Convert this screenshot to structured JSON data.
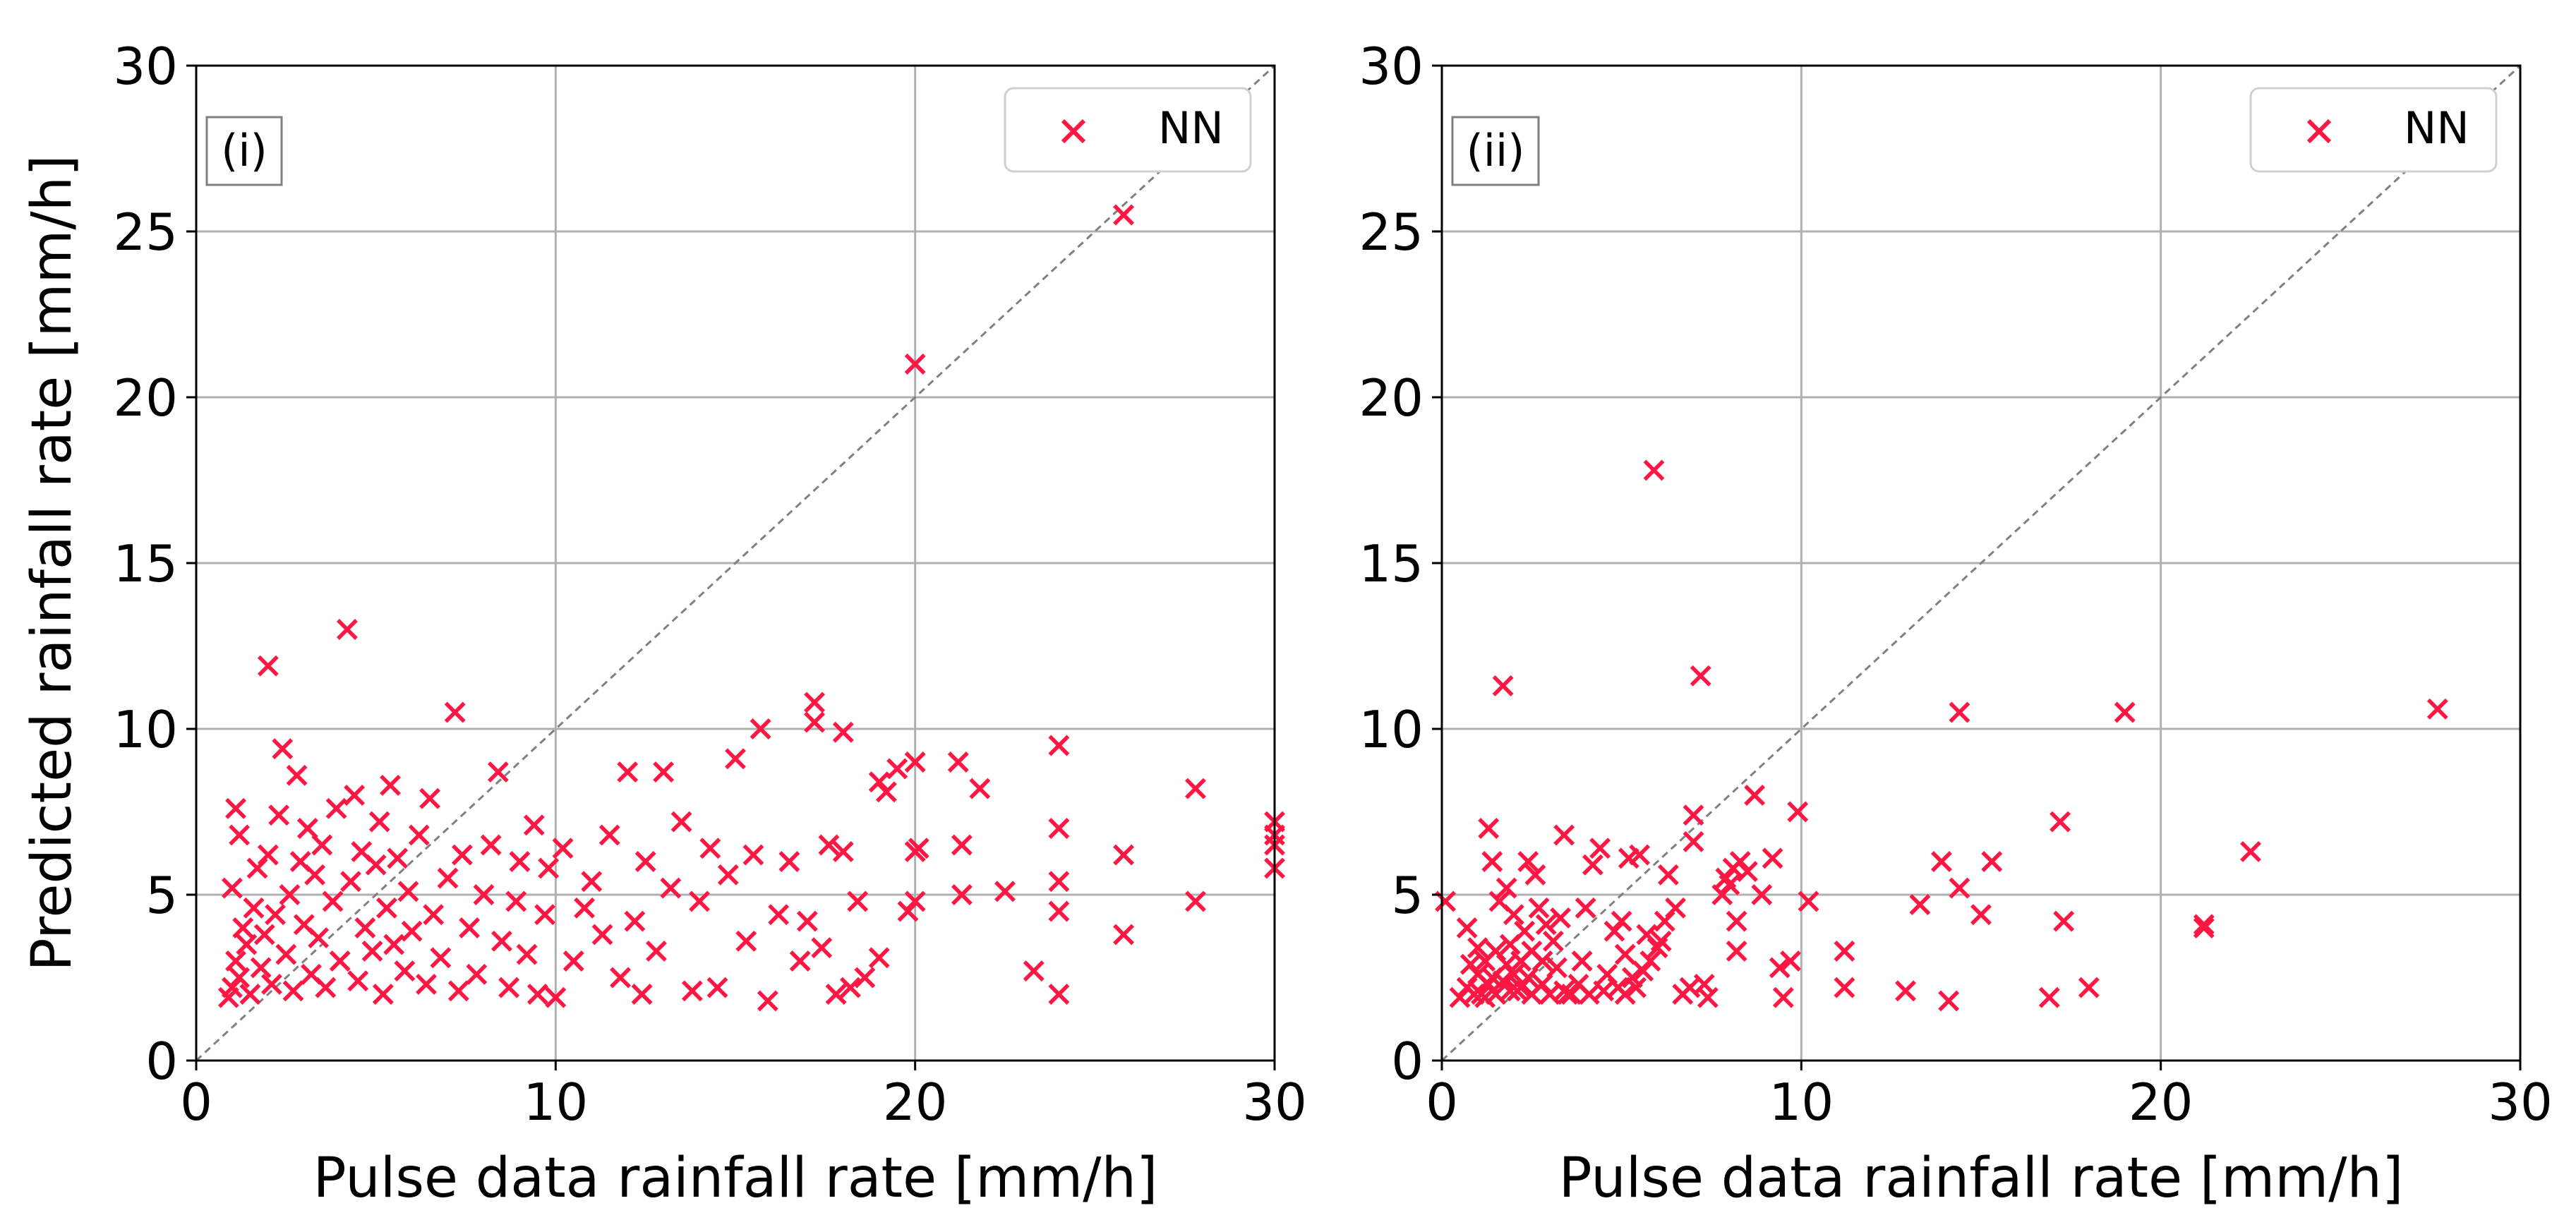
{
  "figure": {
    "marker_color": "#ff1744",
    "grid_color": "#b0b0b0",
    "diagonal_color": "#808080"
  },
  "chart_data": [
    {
      "type": "scatter",
      "panel_label": "(i)",
      "xlabel": "Pulse data rainfall rate [mm/h]",
      "ylabel": "Predicted rainfall rate [mm/h]",
      "xlim": [
        0,
        30
      ],
      "ylim": [
        0,
        30
      ],
      "xticks": [
        0,
        10,
        20,
        30
      ],
      "yticks": [
        0,
        5,
        10,
        15,
        20,
        25,
        30
      ],
      "grid": true,
      "reference_line": "y = x",
      "legend": {
        "position": "top-right",
        "entries": [
          "NN"
        ]
      },
      "marker": "x",
      "series": [
        {
          "name": "NN",
          "points": [
            [
              0.9,
              1.9
            ],
            [
              1.0,
              2.2
            ],
            [
              1.1,
              3.0
            ],
            [
              1.2,
              2.5
            ],
            [
              1.3,
              4.0
            ],
            [
              1.0,
              5.2
            ],
            [
              1.2,
              6.8
            ],
            [
              1.1,
              7.6
            ],
            [
              1.4,
              3.5
            ],
            [
              1.5,
              2.0
            ],
            [
              1.6,
              4.6
            ],
            [
              1.7,
              5.8
            ],
            [
              1.8,
              2.8
            ],
            [
              1.9,
              3.8
            ],
            [
              2.0,
              11.9
            ],
            [
              2.0,
              6.2
            ],
            [
              2.1,
              2.3
            ],
            [
              2.2,
              4.4
            ],
            [
              2.3,
              7.4
            ],
            [
              2.4,
              9.4
            ],
            [
              2.5,
              3.2
            ],
            [
              2.6,
              5.0
            ],
            [
              2.7,
              2.1
            ],
            [
              2.8,
              8.6
            ],
            [
              2.9,
              6.0
            ],
            [
              3.0,
              4.1
            ],
            [
              3.1,
              7.0
            ],
            [
              3.2,
              2.6
            ],
            [
              3.3,
              5.6
            ],
            [
              3.4,
              3.7
            ],
            [
              3.5,
              6.5
            ],
            [
              3.6,
              2.2
            ],
            [
              3.8,
              4.8
            ],
            [
              3.9,
              7.6
            ],
            [
              4.0,
              3.0
            ],
            [
              4.2,
              13.0
            ],
            [
              4.3,
              5.4
            ],
            [
              4.4,
              8.0
            ],
            [
              4.5,
              2.4
            ],
            [
              4.6,
              6.3
            ],
            [
              4.7,
              4.0
            ],
            [
              4.9,
              3.3
            ],
            [
              5.0,
              5.9
            ],
            [
              5.1,
              7.2
            ],
            [
              5.2,
              2.0
            ],
            [
              5.3,
              4.6
            ],
            [
              5.4,
              8.3
            ],
            [
              5.5,
              3.5
            ],
            [
              5.6,
              6.1
            ],
            [
              5.8,
              2.7
            ],
            [
              5.9,
              5.1
            ],
            [
              6.0,
              3.9
            ],
            [
              6.2,
              6.8
            ],
            [
              6.4,
              2.3
            ],
            [
              6.5,
              7.9
            ],
            [
              6.6,
              4.4
            ],
            [
              6.8,
              3.1
            ],
            [
              7.0,
              5.5
            ],
            [
              7.2,
              10.5
            ],
            [
              7.3,
              2.1
            ],
            [
              7.4,
              6.2
            ],
            [
              7.6,
              4.0
            ],
            [
              7.8,
              2.6
            ],
            [
              8.0,
              5.0
            ],
            [
              8.2,
              6.5
            ],
            [
              8.4,
              8.7
            ],
            [
              8.5,
              3.6
            ],
            [
              8.7,
              2.2
            ],
            [
              8.9,
              4.8
            ],
            [
              9.0,
              6.0
            ],
            [
              9.2,
              3.2
            ],
            [
              9.4,
              7.1
            ],
            [
              9.5,
              2.0
            ],
            [
              9.7,
              4.4
            ],
            [
              9.8,
              5.8
            ],
            [
              10.0,
              1.9
            ],
            [
              10.2,
              6.4
            ],
            [
              10.5,
              3.0
            ],
            [
              10.8,
              4.6
            ],
            [
              11.0,
              5.4
            ],
            [
              11.3,
              3.8
            ],
            [
              11.5,
              6.8
            ],
            [
              11.8,
              2.5
            ],
            [
              12.0,
              8.7
            ],
            [
              12.2,
              4.2
            ],
            [
              12.4,
              2.0
            ],
            [
              12.5,
              6.0
            ],
            [
              12.8,
              3.3
            ],
            [
              13.0,
              8.7
            ],
            [
              13.2,
              5.2
            ],
            [
              13.5,
              7.2
            ],
            [
              13.8,
              2.1
            ],
            [
              14.0,
              4.8
            ],
            [
              14.3,
              6.4
            ],
            [
              14.5,
              2.2
            ],
            [
              14.8,
              5.6
            ],
            [
              15.0,
              9.1
            ],
            [
              15.3,
              3.6
            ],
            [
              15.5,
              6.2
            ],
            [
              15.7,
              10.0
            ],
            [
              15.9,
              1.8
            ],
            [
              16.2,
              4.4
            ],
            [
              16.5,
              6.0
            ],
            [
              16.8,
              3.0
            ],
            [
              17.0,
              4.2
            ],
            [
              17.2,
              10.8
            ],
            [
              17.2,
              10.2
            ],
            [
              17.4,
              3.4
            ],
            [
              17.6,
              6.5
            ],
            [
              17.8,
              2.0
            ],
            [
              18.0,
              9.9
            ],
            [
              18.0,
              6.3
            ],
            [
              18.2,
              2.2
            ],
            [
              18.4,
              4.8
            ],
            [
              18.6,
              2.5
            ],
            [
              19.0,
              8.4
            ],
            [
              19.0,
              3.1
            ],
            [
              19.2,
              8.1
            ],
            [
              19.5,
              8.8
            ],
            [
              19.8,
              4.5
            ],
            [
              20.0,
              9.0
            ],
            [
              20.0,
              6.3
            ],
            [
              20.1,
              6.4
            ],
            [
              20.0,
              4.8
            ],
            [
              21.2,
              9.0
            ],
            [
              21.3,
              6.5
            ],
            [
              21.3,
              5.0
            ],
            [
              21.8,
              8.2
            ],
            [
              22.5,
              5.1
            ],
            [
              23.3,
              2.7
            ],
            [
              24.0,
              9.5
            ],
            [
              24.0,
              7.0
            ],
            [
              24.0,
              5.4
            ],
            [
              24.0,
              4.5
            ],
            [
              24.0,
              2.0
            ],
            [
              25.8,
              6.2
            ],
            [
              25.8,
              3.8
            ],
            [
              27.8,
              8.2
            ],
            [
              27.8,
              4.8
            ],
            [
              30.0,
              7.2
            ],
            [
              30.0,
              6.8
            ],
            [
              30.0,
              6.5
            ],
            [
              30.0,
              5.8
            ],
            [
              20.0,
              21.0
            ],
            [
              25.8,
              25.5
            ]
          ]
        }
      ]
    },
    {
      "type": "scatter",
      "panel_label": "(ii)",
      "xlabel": "Pulse data rainfall rate [mm/h]",
      "ylabel": "",
      "xlim": [
        0,
        30
      ],
      "ylim": [
        0,
        30
      ],
      "xticks": [
        0,
        10,
        20,
        30
      ],
      "yticks": [
        0,
        5,
        10,
        15,
        20,
        25,
        30
      ],
      "grid": true,
      "reference_line": "y = x",
      "legend": {
        "position": "top-right",
        "entries": [
          "NN"
        ]
      },
      "marker": "x",
      "series": [
        {
          "name": "NN",
          "points": [
            [
              0.1,
              4.8
            ],
            [
              0.7,
              4.0
            ],
            [
              0.5,
              1.9
            ],
            [
              0.7,
              2.2
            ],
            [
              0.8,
              2.9
            ],
            [
              0.9,
              2.0
            ],
            [
              1.0,
              3.4
            ],
            [
              1.0,
              2.6
            ],
            [
              1.1,
              2.0
            ],
            [
              1.2,
              1.9
            ],
            [
              1.2,
              3.0
            ],
            [
              1.3,
              2.3
            ],
            [
              1.3,
              7.0
            ],
            [
              1.4,
              2.5
            ],
            [
              1.4,
              6.0
            ],
            [
              1.5,
              3.3
            ],
            [
              1.5,
              2.0
            ],
            [
              1.6,
              4.8
            ],
            [
              1.7,
              2.4
            ],
            [
              1.7,
              11.3
            ],
            [
              1.8,
              2.9
            ],
            [
              1.8,
              5.2
            ],
            [
              1.9,
              2.1
            ],
            [
              1.9,
              3.5
            ],
            [
              2.0,
              2.6
            ],
            [
              2.0,
              4.4
            ],
            [
              2.1,
              2.1
            ],
            [
              2.2,
              3.0
            ],
            [
              2.2,
              2.2
            ],
            [
              2.3,
              3.9
            ],
            [
              2.4,
              2.5
            ],
            [
              2.4,
              6.0
            ],
            [
              2.5,
              2.0
            ],
            [
              2.5,
              3.3
            ],
            [
              2.6,
              5.6
            ],
            [
              2.7,
              4.6
            ],
            [
              2.8,
              2.3
            ],
            [
              2.8,
              3.0
            ],
            [
              2.9,
              4.1
            ],
            [
              3.0,
              2.0
            ],
            [
              3.1,
              3.6
            ],
            [
              3.2,
              2.8
            ],
            [
              3.3,
              4.3
            ],
            [
              3.4,
              2.1
            ],
            [
              3.4,
              6.8
            ],
            [
              3.5,
              2.0
            ],
            [
              3.6,
              2.0
            ],
            [
              3.8,
              2.3
            ],
            [
              3.9,
              3.0
            ],
            [
              4.0,
              4.6
            ],
            [
              4.1,
              2.0
            ],
            [
              4.2,
              5.9
            ],
            [
              4.4,
              6.4
            ],
            [
              4.5,
              2.1
            ],
            [
              4.6,
              2.6
            ],
            [
              4.8,
              3.9
            ],
            [
              4.9,
              2.2
            ],
            [
              5.0,
              4.2
            ],
            [
              5.1,
              2.0
            ],
            [
              5.1,
              3.2
            ],
            [
              5.2,
              6.1
            ],
            [
              5.3,
              2.5
            ],
            [
              5.4,
              2.2
            ],
            [
              5.5,
              6.2
            ],
            [
              5.6,
              2.7
            ],
            [
              5.7,
              3.8
            ],
            [
              5.8,
              3.0
            ],
            [
              5.9,
              17.8
            ],
            [
              6.0,
              3.4
            ],
            [
              6.1,
              3.6
            ],
            [
              6.2,
              4.2
            ],
            [
              6.3,
              5.6
            ],
            [
              6.5,
              4.6
            ],
            [
              6.7,
              2.0
            ],
            [
              6.9,
              2.2
            ],
            [
              7.0,
              6.6
            ],
            [
              7.0,
              7.4
            ],
            [
              7.2,
              11.6
            ],
            [
              7.3,
              2.3
            ],
            [
              7.4,
              1.9
            ],
            [
              7.8,
              5.0
            ],
            [
              7.9,
              5.5
            ],
            [
              8.0,
              5.3
            ],
            [
              8.1,
              5.8
            ],
            [
              8.2,
              4.2
            ],
            [
              8.2,
              3.3
            ],
            [
              8.3,
              6.0
            ],
            [
              8.5,
              5.7
            ],
            [
              8.7,
              8.0
            ],
            [
              8.9,
              5.0
            ],
            [
              9.2,
              6.1
            ],
            [
              9.4,
              2.8
            ],
            [
              9.5,
              1.9
            ],
            [
              9.7,
              3.0
            ],
            [
              9.9,
              7.5
            ],
            [
              10.2,
              4.8
            ],
            [
              11.2,
              3.3
            ],
            [
              11.2,
              2.2
            ],
            [
              12.9,
              2.1
            ],
            [
              13.3,
              4.7
            ],
            [
              13.9,
              6.0
            ],
            [
              14.1,
              1.8
            ],
            [
              14.4,
              10.5
            ],
            [
              14.4,
              5.2
            ],
            [
              15.0,
              4.4
            ],
            [
              15.3,
              6.0
            ],
            [
              16.9,
              1.9
            ],
            [
              17.2,
              7.2
            ],
            [
              17.3,
              4.2
            ],
            [
              18.0,
              2.2
            ],
            [
              19.0,
              10.5
            ],
            [
              21.2,
              4.1
            ],
            [
              21.2,
              4.0
            ],
            [
              22.5,
              6.3
            ],
            [
              27.7,
              10.6
            ]
          ]
        }
      ]
    }
  ]
}
